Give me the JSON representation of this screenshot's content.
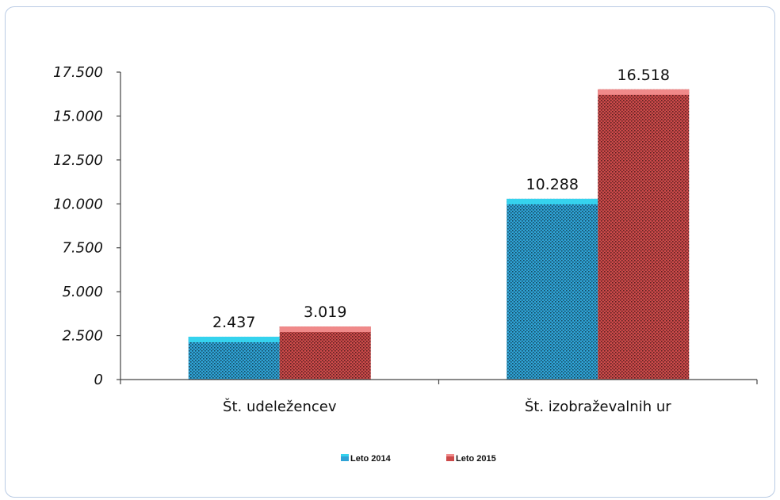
{
  "chart_data": {
    "type": "bar",
    "categories": [
      "Št. udeležencev",
      "Št. izobraževalnih ur"
    ],
    "series": [
      {
        "name": "Leto 2014",
        "values": [
          2437,
          10288
        ],
        "labels": [
          "2.437",
          "10.288"
        ],
        "color": "#2fa3d6",
        "top_color": "#35d3ee"
      },
      {
        "name": "Leto 2015",
        "values": [
          3019,
          16518
        ],
        "labels": [
          "3.019",
          "16.518"
        ],
        "color": "#cc4a4a",
        "top_color": "#f08a8a"
      }
    ],
    "yticks": [
      {
        "value": 0,
        "label": "0"
      },
      {
        "value": 2500,
        "label": "2.500"
      },
      {
        "value": 5000,
        "label": "5.000"
      },
      {
        "value": 7500,
        "label": "7.500"
      },
      {
        "value": 10000,
        "label": "10.000"
      },
      {
        "value": 12500,
        "label": "12.500"
      },
      {
        "value": 15000,
        "label": "15.000"
      },
      {
        "value": 17500,
        "label": "17.500"
      }
    ],
    "ylim": [
      0,
      17500
    ],
    "title": "",
    "xlabel": "",
    "ylabel": "",
    "grid": false,
    "legend_position": "bottom"
  }
}
